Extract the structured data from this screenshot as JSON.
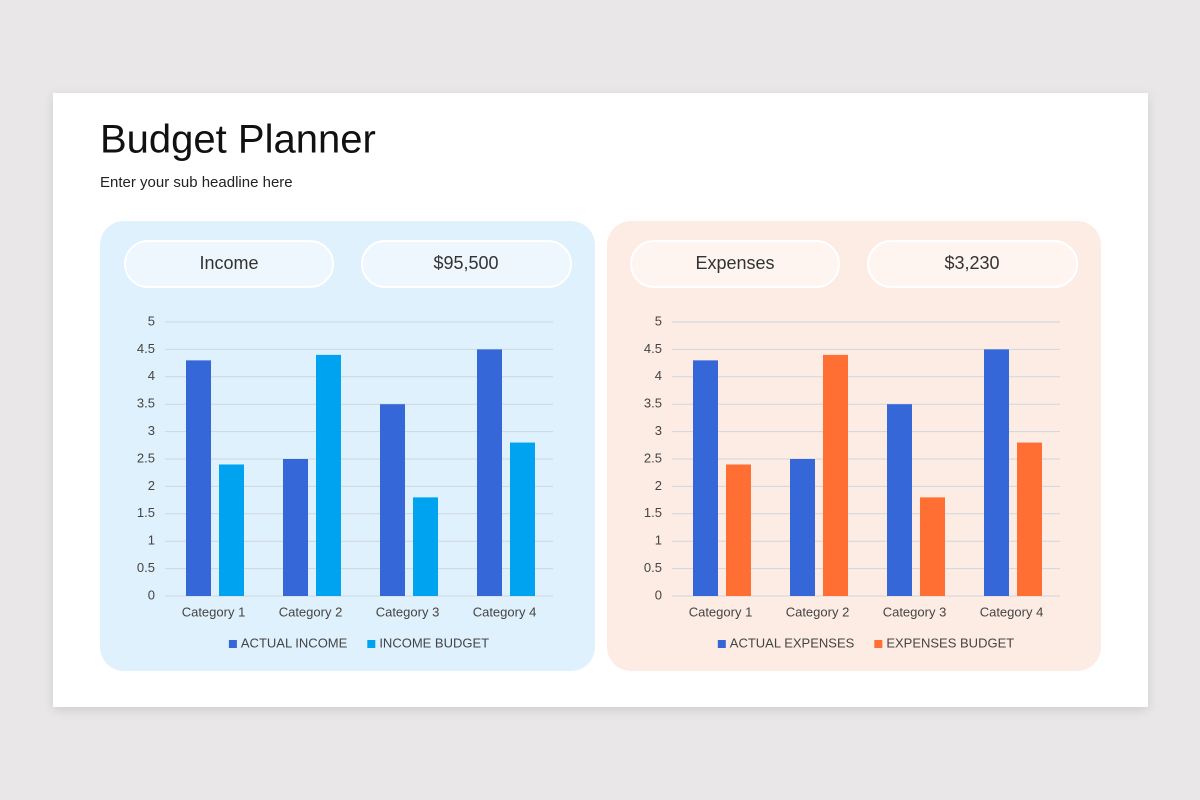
{
  "header": {
    "title": "Budget Planner",
    "subtitle": "Enter your sub headline here"
  },
  "panels": [
    {
      "label": "Income",
      "amount": "$95,500"
    },
    {
      "label": "Expenses",
      "amount": "$3,230"
    }
  ],
  "chart_data": [
    {
      "type": "bar",
      "categories": [
        "Category 1",
        "Category 2",
        "Category 3",
        "Category 4"
      ],
      "series": [
        {
          "name": "ACTUAL INCOME",
          "color": "#3567d9",
          "values": [
            4.3,
            2.5,
            3.5,
            4.5
          ]
        },
        {
          "name": "INCOME BUDGET",
          "color": "#00a3ef",
          "values": [
            2.4,
            4.4,
            1.8,
            2.8
          ]
        }
      ],
      "ylim": [
        0,
        5
      ],
      "yticks": [
        0,
        0.5,
        1,
        1.5,
        2,
        2.5,
        3,
        3.5,
        4,
        4.5,
        5
      ],
      "grid": true,
      "legend": "bottom"
    },
    {
      "type": "bar",
      "categories": [
        "Category 1",
        "Category 2",
        "Category 3",
        "Category 4"
      ],
      "series": [
        {
          "name": "ACTUAL EXPENSES",
          "color": "#3567d9",
          "values": [
            4.3,
            2.5,
            3.5,
            4.5
          ]
        },
        {
          "name": "EXPENSES BUDGET",
          "color": "#ff6f33",
          "values": [
            2.4,
            4.4,
            1.8,
            2.8
          ]
        }
      ],
      "ylim": [
        0,
        5
      ],
      "yticks": [
        0,
        0.5,
        1,
        1.5,
        2,
        2.5,
        3,
        3.5,
        4,
        4.5,
        5
      ],
      "grid": true,
      "legend": "bottom"
    }
  ]
}
